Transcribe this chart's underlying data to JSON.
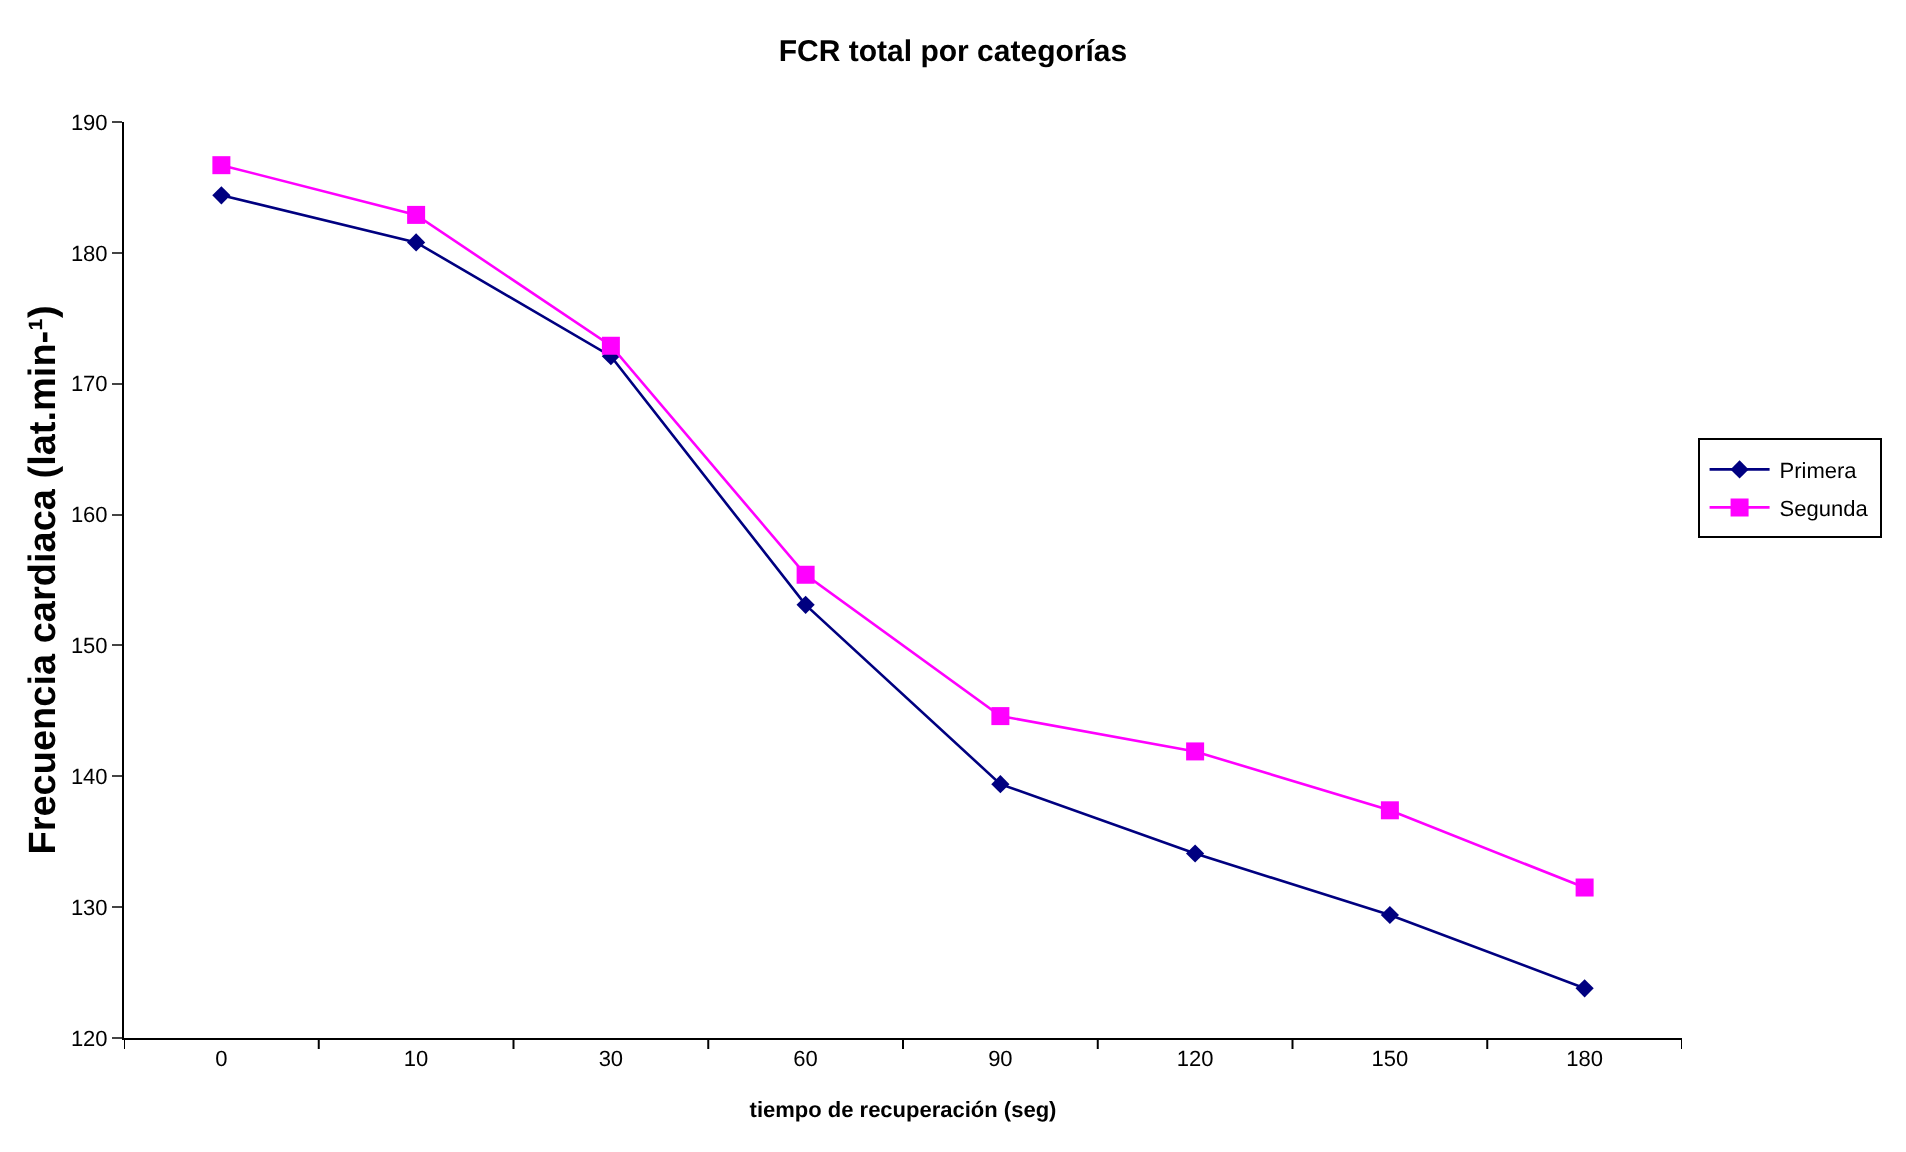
{
  "chart_data": {
    "type": "line",
    "title": "FCR total por categorías",
    "xlabel": "tiempo de recuperación (seg)",
    "ylabel": "Frecuencia cardiaca (lat.min-¹)",
    "categories": [
      "0",
      "10",
      "30",
      "60",
      "90",
      "120",
      "150",
      "180"
    ],
    "series": [
      {
        "name": "Primera",
        "color": "#000080",
        "marker": "diamond",
        "values": [
          184.4,
          180.8,
          172.1,
          153.1,
          139.4,
          134.1,
          129.4,
          123.8
        ]
      },
      {
        "name": "Segunda",
        "color": "#ff00ff",
        "marker": "square",
        "values": [
          186.7,
          182.9,
          172.9,
          155.4,
          144.6,
          141.9,
          137.4,
          131.5
        ]
      }
    ],
    "ylim": [
      120,
      190
    ],
    "yticks": [
      120,
      130,
      140,
      150,
      160,
      170,
      180,
      190
    ],
    "grid": false,
    "legend": "right",
    "line_style": "solid"
  }
}
